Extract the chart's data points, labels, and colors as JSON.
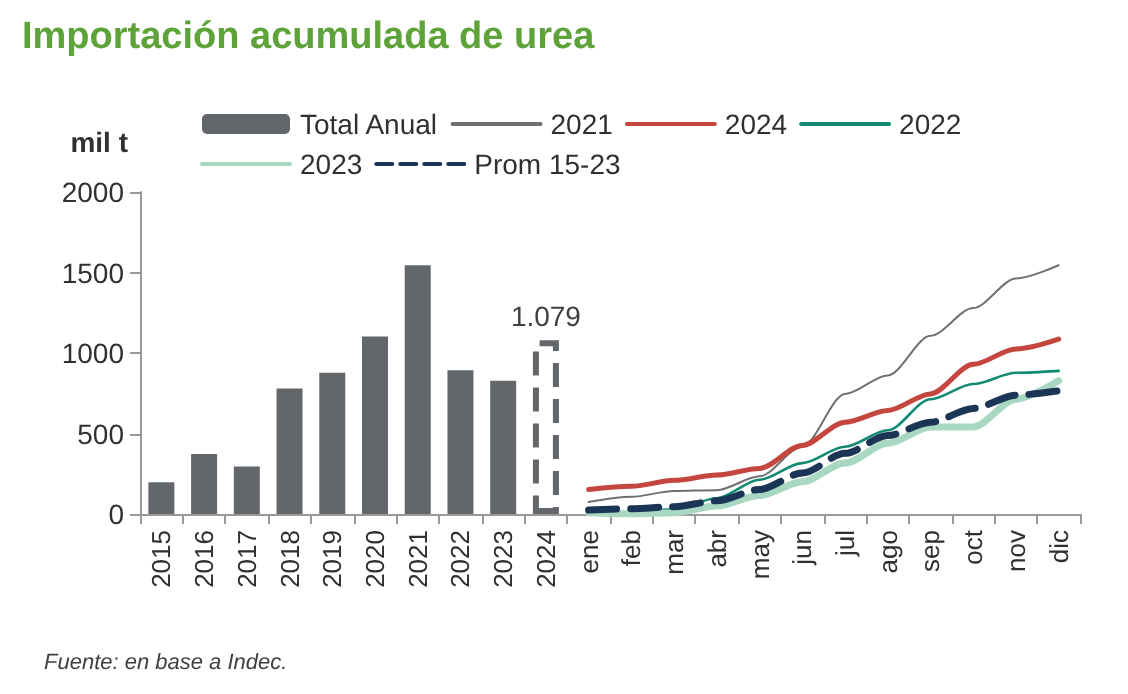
{
  "chart_data": {
    "type": "bar",
    "title": "Importación acumulada de urea",
    "ylabel": "mil t",
    "categories": [
      "2015",
      "2016",
      "2017",
      "2018",
      "2019",
      "2020",
      "2021",
      "2022",
      "2023",
      "2024",
      "ene",
      "feb",
      "mar",
      "abr",
      "may",
      "jun",
      "jul",
      "ago",
      "sep",
      "oct",
      "nov",
      "dic"
    ],
    "ylim": [
      0,
      2000
    ],
    "yticks": [
      0,
      500,
      1000,
      1500,
      2000
    ],
    "grid": false,
    "legend": "top",
    "series": [
      {
        "name": "Total Anual",
        "type": "bar",
        "color": "#63676b",
        "values": [
          197,
          373,
          295,
          779,
          877,
          1102,
          1545,
          893,
          828,
          null,
          null,
          null,
          null,
          null,
          null,
          null,
          null,
          null,
          null,
          null,
          null,
          null
        ]
      },
      {
        "type": "bar",
        "color": "#63676b",
        "line_style": "dashed",
        "values": [
          null,
          null,
          null,
          null,
          null,
          null,
          null,
          null,
          null,
          1079,
          null,
          null,
          null,
          null,
          null,
          null,
          null,
          null,
          null,
          null,
          null,
          null
        ],
        "value_labels": [
          null,
          null,
          null,
          null,
          null,
          null,
          null,
          null,
          null,
          "1.079",
          null,
          null,
          null,
          null,
          null,
          null,
          null,
          null,
          null,
          null,
          null,
          null
        ]
      },
      {
        "name": "2021",
        "type": "line",
        "color": "#707070",
        "line_style": "solid",
        "values": [
          null,
          null,
          null,
          null,
          null,
          null,
          null,
          null,
          null,
          null,
          74,
          107,
          143,
          148,
          234,
          418,
          746,
          861,
          1107,
          1279,
          1463,
          1545
        ]
      },
      {
        "name": "2024",
        "type": "line",
        "color": "#c4463f",
        "line_style": "solid",
        "values": [
          null,
          null,
          null,
          null,
          null,
          null,
          null,
          null,
          null,
          null,
          152,
          172,
          209,
          242,
          283,
          426,
          570,
          643,
          746,
          930,
          1025,
          1086
        ]
      },
      {
        "name": "2022",
        "type": "line",
        "color": "#138a72",
        "line_style": "solid",
        "values": [
          null,
          null,
          null,
          null,
          null,
          null,
          null,
          null,
          null,
          null,
          8,
          12,
          29,
          98,
          213,
          316,
          418,
          520,
          713,
          807,
          877,
          889
        ]
      },
      {
        "name": "2023",
        "type": "line",
        "color": "#a8d8c2",
        "line_style": "solid",
        "values": [
          null,
          null,
          null,
          null,
          null,
          null,
          null,
          null,
          null,
          null,
          8,
          0,
          8,
          49,
          115,
          201,
          316,
          439,
          541,
          541,
          713,
          828
        ]
      },
      {
        "name": "Prom 15-23",
        "type": "line",
        "color": "#1b3556",
        "line_style": "dashed",
        "values": [
          null,
          null,
          null,
          null,
          null,
          null,
          null,
          null,
          null,
          null,
          25,
          33,
          45,
          82,
          152,
          254,
          377,
          488,
          570,
          656,
          738,
          766
        ]
      }
    ],
    "annotations": [
      "Fuente: en base a Indec."
    ]
  }
}
